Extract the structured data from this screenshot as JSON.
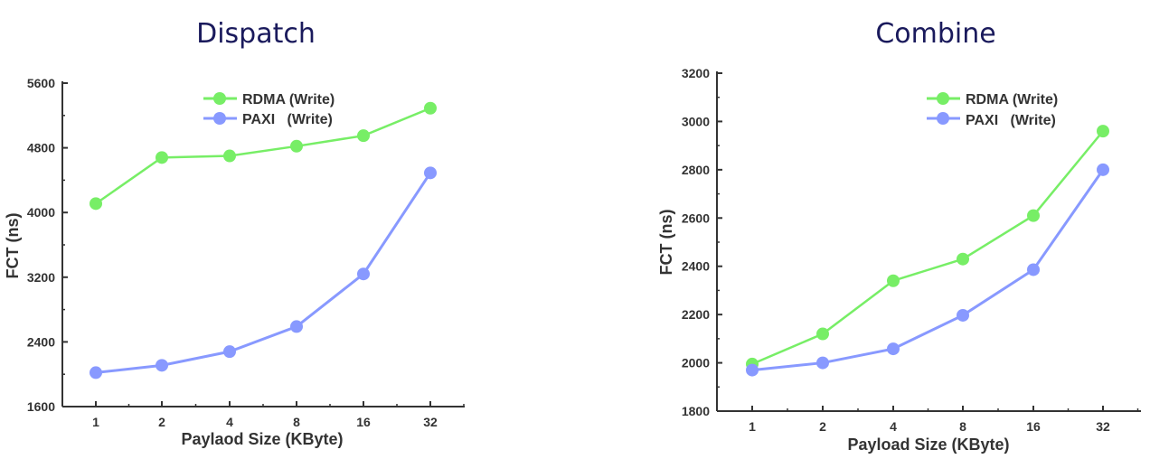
{
  "chart_data": [
    {
      "type": "line",
      "title": "Dispatch",
      "xlabel": "Paylaod Size (KByte)",
      "ylabel": "FCT (ns)",
      "categories": [
        "1",
        "2",
        "4",
        "8",
        "16",
        "32"
      ],
      "ylim": [
        1600,
        5600
      ],
      "yticks": [
        1600,
        2400,
        3200,
        4000,
        4800,
        5600
      ],
      "grid": false,
      "legend_position": "top-right",
      "series": [
        {
          "name": "RDMA (Write)",
          "color": "#77ee66",
          "values": [
            4110,
            4680,
            4700,
            4820,
            4950,
            5290
          ]
        },
        {
          "name": "PAXI   (Write)",
          "color": "#8899ff",
          "values": [
            2020,
            2110,
            2280,
            2590,
            3240,
            4490
          ]
        }
      ]
    },
    {
      "type": "line",
      "title": "Combine",
      "xlabel": "Payload Size (KByte)",
      "ylabel": "FCT (ns)",
      "categories": [
        "1",
        "2",
        "4",
        "8",
        "16",
        "32"
      ],
      "ylim": [
        1800,
        3200
      ],
      "yticks": [
        1800,
        2000,
        2200,
        2400,
        2600,
        2800,
        3000,
        3200
      ],
      "grid": false,
      "legend_position": "top-right",
      "series": [
        {
          "name": "RDMA (Write)",
          "color": "#77ee66",
          "values": [
            1995,
            2120,
            2340,
            2430,
            2610,
            2960
          ]
        },
        {
          "name": "PAXI   (Write)",
          "color": "#8899ff",
          "values": [
            1970,
            2000,
            2058,
            2197,
            2386,
            2800
          ]
        }
      ]
    }
  ]
}
